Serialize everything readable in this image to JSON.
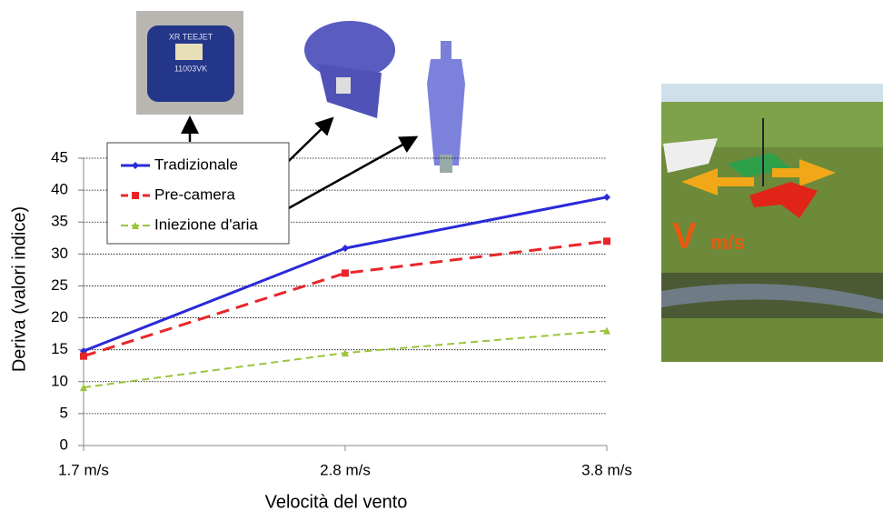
{
  "chart_data": {
    "type": "line",
    "x_label": "Velocità del vento",
    "y_label": "Deriva (valori indice)",
    "categories": [
      "1.7 m/s",
      "2.8 m/s",
      "3.8 m/s"
    ],
    "series": [
      {
        "name": "Tradizionale",
        "color": "#2a2ad8",
        "line_style": "solid",
        "marker": "diamond",
        "values": [
          14.8,
          30.9,
          38.9
        ]
      },
      {
        "name": "Pre-camera",
        "color": "#e8262a",
        "line_style": "dashed",
        "marker": "square",
        "values": [
          14,
          27,
          32
        ]
      },
      {
        "name": "Iniezione d'aria",
        "color": "#9ac43a",
        "line_style": "dashed",
        "marker": "triangle",
        "values": [
          9.1,
          14.5,
          18
        ]
      }
    ],
    "ylim": [
      0,
      45
    ],
    "yticks": [
      0,
      5,
      10,
      15,
      20,
      25,
      30,
      35,
      40,
      45
    ],
    "grid": true,
    "legend": "upper-left"
  },
  "nozzle_labels": [
    "XR TEEJET",
    "11003VK"
  ],
  "photo_labels": [
    "V",
    "m/s"
  ]
}
